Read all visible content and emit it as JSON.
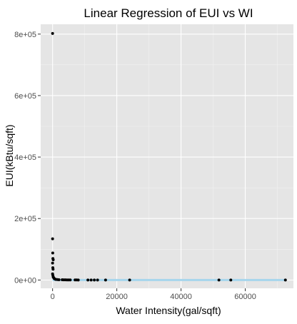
{
  "chart_data": {
    "type": "scatter",
    "title": "Linear Regression of EUI vs WI",
    "xlabel": "Water Intensity(gal/sqft)",
    "ylabel": "EUI(kBtu/sqft)",
    "xlim": [
      -3700,
      75000
    ],
    "ylim": [
      -27000,
      832000
    ],
    "x_ticks": [
      0,
      20000,
      40000,
      60000
    ],
    "x_tick_labels": [
      "0",
      "20000",
      "40000",
      "60000"
    ],
    "y_ticks": [
      0,
      200000,
      400000,
      600000,
      800000
    ],
    "y_tick_labels": [
      "0e+00",
      "2e+05",
      "4e+05",
      "6e+05",
      "8e+05"
    ],
    "grid": true,
    "legend": "none",
    "colors": {
      "panel_background": "#E5E5E5",
      "grid_major": "#FFFFFF",
      "grid_minor": "#F2F2F2",
      "points": "#000000",
      "fit_line": "#A6D5EC",
      "axis_text": "#4D4D4D"
    },
    "points": [
      {
        "x": 0,
        "y": 802000
      },
      {
        "x": 0,
        "y": 134000
      },
      {
        "x": 50,
        "y": 88000
      },
      {
        "x": 100,
        "y": 70000
      },
      {
        "x": 200,
        "y": 66000
      },
      {
        "x": 0,
        "y": 55000
      },
      {
        "x": 80,
        "y": 40000
      },
      {
        "x": 150,
        "y": 35000
      },
      {
        "x": 0,
        "y": 20000
      },
      {
        "x": 100,
        "y": 15000
      },
      {
        "x": 200,
        "y": 10000
      },
      {
        "x": 300,
        "y": 8000
      },
      {
        "x": 500,
        "y": 5000
      },
      {
        "x": 800,
        "y": 3000
      },
      {
        "x": 1000,
        "y": 2000
      },
      {
        "x": 1500,
        "y": 1500
      },
      {
        "x": 2000,
        "y": 1000
      },
      {
        "x": 3000,
        "y": 800
      },
      {
        "x": 3500,
        "y": 600
      },
      {
        "x": 4000,
        "y": 500
      },
      {
        "x": 4500,
        "y": 400
      },
      {
        "x": 5000,
        "y": 300
      },
      {
        "x": 5500,
        "y": 250
      },
      {
        "x": 7000,
        "y": 200
      },
      {
        "x": 7500,
        "y": 150
      },
      {
        "x": 8000,
        "y": 100
      },
      {
        "x": 11000,
        "y": 100
      },
      {
        "x": 12000,
        "y": 100
      },
      {
        "x": 13000,
        "y": 100
      },
      {
        "x": 14000,
        "y": 100
      },
      {
        "x": 16500,
        "y": 100
      },
      {
        "x": 24000,
        "y": 100
      },
      {
        "x": 51800,
        "y": 100
      },
      {
        "x": 55500,
        "y": 100
      },
      {
        "x": 72500,
        "y": 100
      }
    ],
    "fit_line": {
      "x": [
        0,
        72500
      ],
      "y": [
        0,
        0
      ]
    }
  }
}
